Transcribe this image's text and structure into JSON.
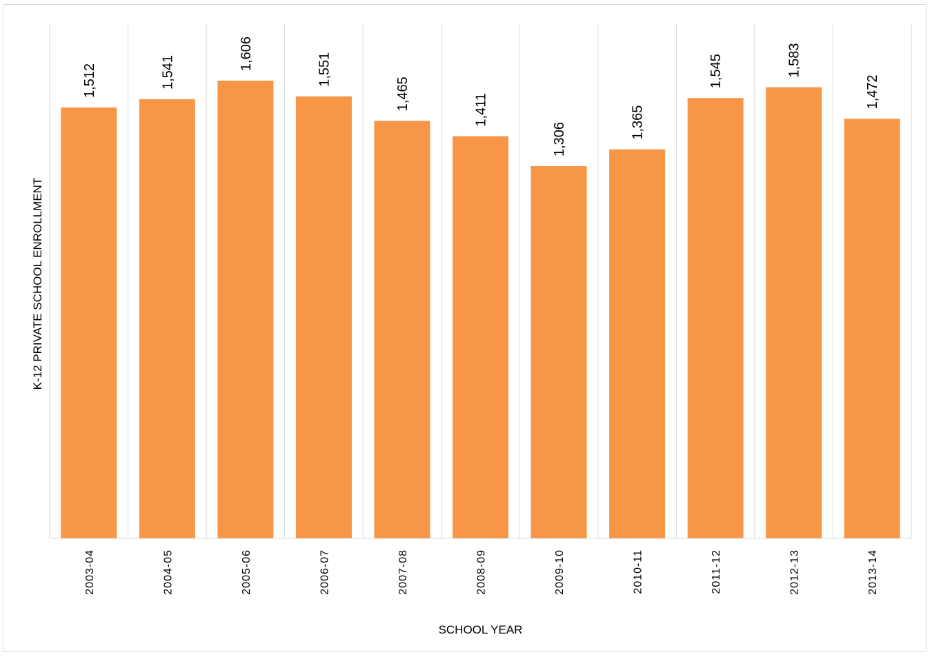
{
  "chart_data": {
    "type": "bar",
    "title": "",
    "xlabel": "SCHOOL YEAR",
    "ylabel": "K-12 PRIVATE SCHOOL ENROLLMENT",
    "categories": [
      "2003-04",
      "2004-05",
      "2005-06",
      "2006-07",
      "2007-08",
      "2008-09",
      "2009-10",
      "2010-11",
      "2011-12",
      "2012-13",
      "2013-14"
    ],
    "values": [
      1512,
      1541,
      1606,
      1551,
      1465,
      1411,
      1306,
      1365,
      1545,
      1583,
      1472
    ],
    "value_labels": [
      "1,512",
      "1,541",
      "1,606",
      "1,551",
      "1,465",
      "1,411",
      "1,306",
      "1,365",
      "1,545",
      "1,583",
      "1,472"
    ],
    "ylim": [
      0,
      1606
    ],
    "grid": "vertical",
    "legend": "none",
    "bar_color": "#F79646",
    "grid_color": "#d9d9d9"
  }
}
